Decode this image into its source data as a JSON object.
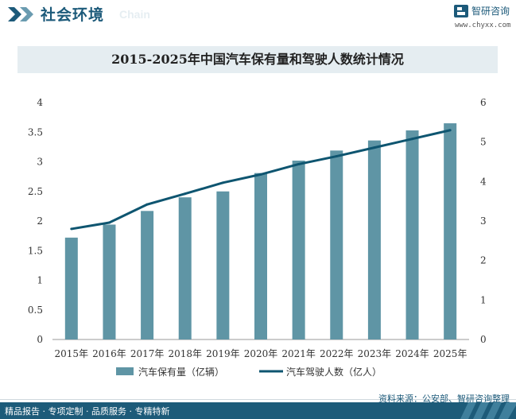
{
  "header": {
    "section_title": "社会环境",
    "section_title_en": "Chain",
    "brand_name": "智研咨询",
    "brand_url": "www.chyxx.com"
  },
  "colors": {
    "bar": "#5f95a5",
    "line": "#0e5570",
    "header_blue": "#1c5a7a",
    "title_bg": "#e5edf1"
  },
  "chart_data": {
    "type": "bar+line",
    "title": "2015-2025年中国汽车保有量和驾驶人数统计情况",
    "categories": [
      "2015年",
      "2016年",
      "2017年",
      "2018年",
      "2019年",
      "2020年",
      "2021年",
      "2022年",
      "2023年",
      "2024年",
      "2025年"
    ],
    "series": [
      {
        "name": "汽车保有量（亿辆）",
        "type": "bar",
        "axis": "left",
        "values": [
          1.72,
          1.94,
          2.17,
          2.4,
          2.5,
          2.81,
          3.02,
          3.19,
          3.36,
          3.53,
          3.65
        ]
      },
      {
        "name": "汽车驾驶人数（亿人）",
        "type": "line",
        "axis": "right",
        "values": [
          2.8,
          2.96,
          3.42,
          3.69,
          3.97,
          4.18,
          4.44,
          4.64,
          4.86,
          5.08,
          5.3
        ]
      }
    ],
    "y_left": {
      "min": 0,
      "max": 4,
      "ticks": [
        "0",
        "0.5",
        "1",
        "1.5",
        "2",
        "2.5",
        "3",
        "3.5",
        "4"
      ]
    },
    "y_right": {
      "min": 0,
      "max": 6,
      "ticks": [
        "0",
        "1",
        "2",
        "3",
        "4",
        "5",
        "6"
      ]
    },
    "grid": false,
    "legend_position": "bottom"
  },
  "footer": {
    "source": "资料来源：公安部、智研咨询整理",
    "slogan": "精品报告 · 专项定制 · 品质服务 · 专精特新"
  }
}
